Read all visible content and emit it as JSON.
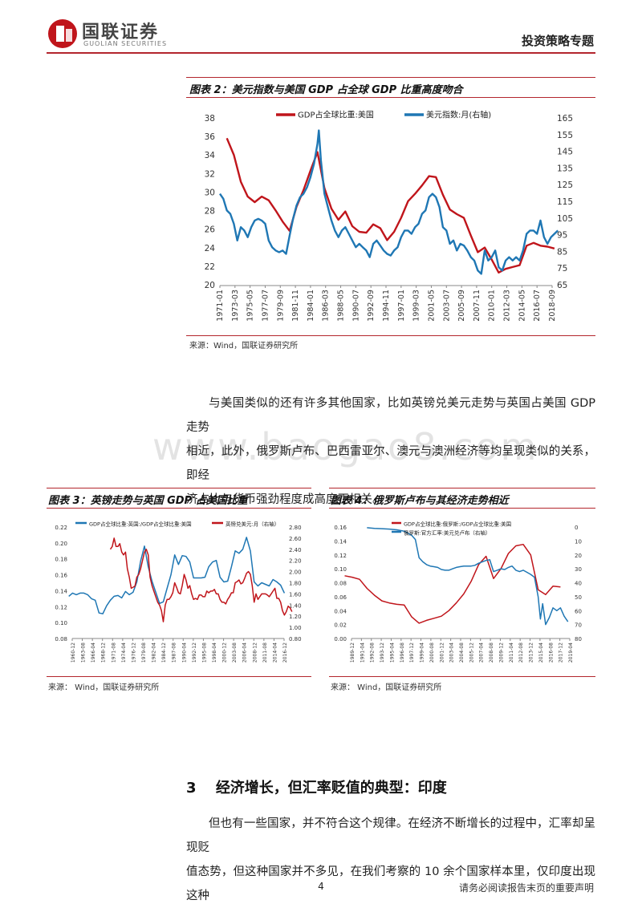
{
  "header": {
    "logo_cn": "国联证券",
    "logo_en": "GUOLIAN SECURITIES",
    "category": "投资策略专题"
  },
  "watermark": "www.baogao8.com",
  "fig2": {
    "title": "图表 2：美元指数与美国 GDP 占全球 GDP 比重高度吻合",
    "source": "来源：Wind，国联证券研究所",
    "chart_data": {
      "type": "line",
      "legend_position": "top",
      "series": [
        {
          "name": "GDP占全球比重:美国",
          "axis": "left",
          "color": "#c0151b",
          "x": [
            1972,
            1973,
            1974,
            1975,
            1976,
            1977,
            1978,
            1979,
            1980,
            1981,
            1982,
            1983,
            1984,
            1985,
            1986,
            1987,
            1988,
            1989,
            1990,
            1991,
            1992,
            1993,
            1994,
            1995,
            1996,
            1997,
            1998,
            1999,
            2000,
            2001,
            2002,
            2003,
            2004,
            2005,
            2006,
            2007,
            2008,
            2009,
            2010,
            2011,
            2012,
            2013,
            2014,
            2015,
            2016,
            2017,
            2018,
            2019
          ],
          "values": [
            35.9,
            34.1,
            31.2,
            29.6,
            29.0,
            29.6,
            29.2,
            28.1,
            26.9,
            25.9,
            28.5,
            30.3,
            32.4,
            34.4,
            30.5,
            28.3,
            27.1,
            28.0,
            26.4,
            25.8,
            25.7,
            26.6,
            26.2,
            24.9,
            25.8,
            27.3,
            29.1,
            29.9,
            30.8,
            31.8,
            31.7,
            29.8,
            28.2,
            27.7,
            27.3,
            25.4,
            23.6,
            24.1,
            22.8,
            21.4,
            21.8,
            22.0,
            22.2,
            24.3,
            24.6,
            24.3,
            24.2,
            24.0
          ]
        },
        {
          "name": "美元指数:月(右轴)",
          "axis": "right",
          "color": "#1f77b4",
          "x": [
            1971.0,
            1971.5,
            1972.0,
            1972.5,
            1973.0,
            1973.5,
            1974.0,
            1974.5,
            1975.0,
            1975.5,
            1976.0,
            1976.5,
            1977.0,
            1977.5,
            1978.0,
            1978.5,
            1979.0,
            1979.5,
            1980.0,
            1980.5,
            1981.0,
            1981.5,
            1982.0,
            1982.5,
            1983.0,
            1983.5,
            1984.0,
            1984.5,
            1985.0,
            1985.2,
            1985.5,
            1986.0,
            1986.5,
            1987.0,
            1987.5,
            1988.0,
            1988.5,
            1989.0,
            1989.5,
            1990.0,
            1990.5,
            1991.0,
            1991.5,
            1992.0,
            1992.5,
            1993.0,
            1993.5,
            1994.0,
            1994.5,
            1995.0,
            1995.5,
            1996.0,
            1996.5,
            1997.0,
            1997.5,
            1998.0,
            1998.5,
            1999.0,
            1999.5,
            2000.0,
            2000.5,
            2001.0,
            2001.5,
            2002.0,
            2002.5,
            2003.0,
            2003.5,
            2004.0,
            2004.5,
            2005.0,
            2005.5,
            2006.0,
            2006.5,
            2007.0,
            2007.5,
            2008.0,
            2008.5,
            2009.0,
            2009.5,
            2010.0,
            2010.5,
            2011.0,
            2011.5,
            2012.0,
            2012.5,
            2013.0,
            2013.5,
            2014.0,
            2014.5,
            2015.0,
            2015.5,
            2016.0,
            2016.5,
            2017.0,
            2017.5,
            2018.0,
            2018.5,
            2019.0,
            2019.5
          ],
          "values": [
            120,
            117,
            110,
            108,
            102,
            92,
            100,
            98,
            94,
            100,
            104,
            105,
            104,
            102,
            92,
            88,
            86,
            85,
            86,
            84,
            95,
            105,
            113,
            118,
            120,
            124,
            130,
            138,
            150,
            158,
            140,
            120,
            112,
            104,
            98,
            94,
            98,
            100,
            96,
            92,
            88,
            90,
            88,
            86,
            82,
            90,
            92,
            89,
            86,
            84,
            83,
            86,
            88,
            94,
            98,
            98,
            96,
            100,
            102,
            108,
            110,
            118,
            120,
            118,
            112,
            100,
            98,
            90,
            92,
            86,
            90,
            89,
            86,
            82,
            80,
            74,
            72,
            86,
            80,
            82,
            86,
            76,
            74,
            80,
            82,
            80,
            82,
            80,
            86,
            96,
            98,
            98,
            96,
            104,
            94,
            90,
            94,
            96,
            98
          ]
        }
      ],
      "x_categories": [
        "1971-01",
        "1973-03",
        "1975-05",
        "1977-07",
        "1979-09",
        "1981-11",
        "1984-01",
        "1986-03",
        "1988-05",
        "1990-07",
        "1992-09",
        "1994-11",
        "1997-01",
        "1999-03",
        "2001-05",
        "2003-07",
        "2005-09",
        "2007-11",
        "2010-01",
        "2012-03",
        "2014-05",
        "2016-07",
        "2018-09"
      ],
      "ylim_left": [
        20,
        38
      ],
      "yticks_left": [
        "20",
        "22",
        "24",
        "26",
        "28",
        "30",
        "32",
        "34",
        "36",
        "38"
      ],
      "ylim_right": [
        65,
        165
      ],
      "yticks_right": [
        "65",
        "75",
        "85",
        "95",
        "105",
        "115",
        "125",
        "135",
        "145",
        "155",
        "165"
      ],
      "grid": false
    }
  },
  "paragraph1": {
    "line1": "与美国类似的还有许多其他国家，比如英镑兑美元走势与英国占美国 GDP 走势",
    "line2": "相近，此外，俄罗斯卢布、巴西雷亚尔、澳元与澳洲经济等均呈现类似的关系，即经",
    "line3": "济占比与货币强劲程度成高度正相关。"
  },
  "fig3": {
    "title": "图表 3：英镑走势与英国 GDP 占美国比重",
    "source": "来源：  Wind，国联证券研究所",
    "chart_data": {
      "type": "line",
      "legend_position": "top",
      "series": [
        {
          "name": "GDP占全球比重:英国:/GDP占全球比重:美国",
          "axis": "left",
          "color": "#1f77b4",
          "x": [
            1960,
            1961,
            1962,
            1963,
            1964,
            1965,
            1966,
            1967,
            1968,
            1969,
            1970,
            1971,
            1972,
            1973,
            1974,
            1975,
            1976,
            1977,
            1978,
            1979,
            1980,
            1981,
            1982,
            1983,
            1984,
            1985,
            1986,
            1987,
            1988,
            1989,
            1990,
            1991,
            1992,
            1993,
            1994,
            1995,
            1996,
            1997,
            1998,
            1999,
            2000,
            2001,
            2002,
            2003,
            2004,
            2005,
            2006,
            2007,
            2008,
            2009,
            2010,
            2011,
            2012,
            2013,
            2014,
            2015,
            2016,
            2017
          ],
          "values": [
            0.133,
            0.137,
            0.135,
            0.137,
            0.137,
            0.135,
            0.13,
            0.128,
            0.112,
            0.111,
            0.121,
            0.128,
            0.133,
            0.134,
            0.131,
            0.139,
            0.135,
            0.138,
            0.151,
            0.177,
            0.196,
            0.17,
            0.152,
            0.138,
            0.124,
            0.126,
            0.143,
            0.16,
            0.185,
            0.173,
            0.184,
            0.183,
            0.176,
            0.156,
            0.156,
            0.156,
            0.157,
            0.17,
            0.176,
            0.178,
            0.157,
            0.151,
            0.152,
            0.17,
            0.19,
            0.187,
            0.192,
            0.207,
            0.19,
            0.151,
            0.146,
            0.15,
            0.148,
            0.146,
            0.154,
            0.151,
            0.147,
            0.137
          ]
        },
        {
          "name": "英镑兑美元:月（右轴）",
          "axis": "right",
          "color": "#c0151b",
          "x": [
            1971.0,
            1971.5,
            1972.0,
            1972.5,
            1973.0,
            1973.5,
            1974.0,
            1974.5,
            1975.0,
            1975.5,
            1976.0,
            1976.5,
            1977.0,
            1977.5,
            1978.0,
            1978.5,
            1979.0,
            1979.5,
            1980.0,
            1980.5,
            1981.0,
            1981.5,
            1982.0,
            1982.5,
            1983.0,
            1983.5,
            1984.0,
            1984.5,
            1985.0,
            1985.5,
            1986.0,
            1986.5,
            1987.0,
            1987.5,
            1988.0,
            1988.5,
            1989.0,
            1989.5,
            1990.0,
            1990.5,
            1991.0,
            1991.5,
            1992.0,
            1992.5,
            1993.0,
            1993.5,
            1994.0,
            1994.5,
            1995.0,
            1995.5,
            1996.0,
            1996.5,
            1997.0,
            1997.5,
            1998.0,
            1998.5,
            1999.0,
            1999.5,
            2000.0,
            2000.5,
            2001.0,
            2001.5,
            2002.0,
            2002.5,
            2003.0,
            2003.5,
            2004.0,
            2004.5,
            2005.0,
            2005.5,
            2006.0,
            2006.5,
            2007.0,
            2007.5,
            2008.0,
            2008.5,
            2009.0,
            2009.5,
            2010.0,
            2010.5,
            2011.0,
            2011.5,
            2012.0,
            2012.5,
            2013.0,
            2013.5,
            2014.0,
            2014.5,
            2015.0,
            2015.5,
            2016.0,
            2016.5,
            2017.0,
            2017.5,
            2018.0,
            2018.5,
            2019.0
          ],
          "values": [
            2.4,
            2.45,
            2.6,
            2.45,
            2.45,
            2.5,
            2.35,
            2.3,
            2.35,
            2.05,
            1.9,
            1.7,
            1.72,
            1.74,
            1.9,
            1.95,
            2.05,
            2.2,
            2.35,
            2.4,
            2.3,
            1.9,
            1.75,
            1.65,
            1.55,
            1.45,
            1.4,
            1.3,
            1.1,
            1.4,
            1.5,
            1.5,
            1.55,
            1.62,
            1.8,
            1.72,
            1.62,
            1.6,
            1.75,
            1.95,
            1.85,
            1.7,
            1.75,
            1.6,
            1.5,
            1.52,
            1.5,
            1.58,
            1.58,
            1.55,
            1.55,
            1.65,
            1.62,
            1.65,
            1.65,
            1.68,
            1.6,
            1.6,
            1.5,
            1.45,
            1.45,
            1.42,
            1.5,
            1.55,
            1.62,
            1.62,
            1.8,
            1.82,
            1.85,
            1.78,
            1.8,
            1.88,
            1.97,
            2.0,
            1.95,
            1.75,
            1.45,
            1.6,
            1.5,
            1.55,
            1.6,
            1.6,
            1.6,
            1.58,
            1.55,
            1.6,
            1.65,
            1.7,
            1.52,
            1.52,
            1.45,
            1.3,
            1.22,
            1.28,
            1.38,
            1.35,
            1.28
          ]
        }
      ],
      "x_categories": [
        "1960-12",
        "1963-08",
        "1966-04",
        "1968-12",
        "1971-08",
        "1974-04",
        "1976-12",
        "1979-08",
        "1982-04",
        "1984-12",
        "1987-08",
        "1990-04",
        "1992-12",
        "1995-08",
        "1998-04",
        "2000-12",
        "2003-08",
        "2006-04",
        "2008-12",
        "2011-08",
        "2014-04",
        "2016-12"
      ],
      "ylim_left": [
        0.08,
        0.22
      ],
      "yticks_left": [
        "0.08",
        "0.10",
        "0.12",
        "0.14",
        "0.16",
        "0.18",
        "0.20",
        "0.22"
      ],
      "ylim_right": [
        0.8,
        2.8
      ],
      "yticks_right": [
        "0.80",
        "1.00",
        "1.20",
        "1.40",
        "1.60",
        "1.80",
        "2.00",
        "2.20",
        "2.40",
        "2.60",
        "2.80"
      ],
      "grid": false
    }
  },
  "fig4": {
    "title": "图表 4：俄罗斯卢布与其经济走势相近",
    "source": "来源：  Wind，国联证券研究所",
    "chart_data": {
      "type": "line",
      "legend_position": "top",
      "series": [
        {
          "name": "GDP占全球比重:俄罗斯:/GDP占全球比重:美国",
          "axis": "left",
          "color": "#c0151b",
          "x": [
            1989,
            1990,
            1991,
            1992,
            1993,
            1994,
            1995,
            1996,
            1997,
            1998,
            1999,
            2000,
            2001,
            2002,
            2003,
            2004,
            2005,
            2006,
            2007,
            2008,
            2009,
            2010,
            2011,
            2012,
            2013,
            2014,
            2015,
            2016,
            2017,
            2018
          ],
          "values": [
            0.09,
            0.088,
            0.085,
            0.072,
            0.062,
            0.054,
            0.051,
            0.049,
            0.048,
            0.031,
            0.022,
            0.026,
            0.029,
            0.032,
            0.04,
            0.051,
            0.064,
            0.082,
            0.106,
            0.118,
            0.086,
            0.1,
            0.122,
            0.133,
            0.135,
            0.12,
            0.07,
            0.063,
            0.075,
            0.074
          ]
        },
        {
          "name": "俄罗斯:官方汇率:美元兑卢布（右轴）",
          "axis": "right",
          "color": "#1f77b4",
          "x": [
            1992.0,
            1993.0,
            1994.0,
            1995.0,
            1996.0,
            1997.0,
            1998.0,
            1998.5,
            1999.0,
            1999.5,
            2000.0,
            2000.5,
            2001.0,
            2001.5,
            2002.0,
            2002.5,
            2003.0,
            2003.5,
            2004.0,
            2004.5,
            2005.0,
            2005.5,
            2006.0,
            2006.5,
            2007.0,
            2007.5,
            2008.0,
            2008.5,
            2009.0,
            2009.5,
            2010.0,
            2010.5,
            2011.0,
            2011.5,
            2012.0,
            2012.5,
            2013.0,
            2013.5,
            2014.0,
            2014.5,
            2015.0,
            2015.3,
            2015.6,
            2016.0,
            2016.5,
            2017.0,
            2017.5,
            2018.0,
            2018.5,
            2019.0
          ],
          "values": [
            0.5,
            1.0,
            1.2,
            1.5,
            2.0,
            3.0,
            6.0,
            9.0,
            22.0,
            25.0,
            27.0,
            28.0,
            28.5,
            29.0,
            30.5,
            31.0,
            31.0,
            30.0,
            29.0,
            28.5,
            28.0,
            28.0,
            28.0,
            27.5,
            26.0,
            25.0,
            24.0,
            23.5,
            32.0,
            31.0,
            30.0,
            30.5,
            29.0,
            28.0,
            31.0,
            32.0,
            31.0,
            32.5,
            34.0,
            36.0,
            50.0,
            66.0,
            55.0,
            70.0,
            65.0,
            58.0,
            60.0,
            58.0,
            64.0,
            68.0
          ]
        }
      ],
      "x_categories": [
        "1989-12",
        "1991-04",
        "1992-08",
        "1993-12",
        "1995-04",
        "1996-08",
        "1997-12",
        "1999-04",
        "2000-08",
        "2001-12",
        "2003-04",
        "2004-08",
        "2005-12",
        "2007-04",
        "2008-08",
        "2009-12",
        "2011-04",
        "2012-08",
        "2013-12",
        "2015-04",
        "2016-08",
        "2017-12",
        "2019-04"
      ],
      "ylim_left": [
        0,
        0.16
      ],
      "yticks_left": [
        "0.00",
        "0.02",
        "0.04",
        "0.06",
        "0.08",
        "0.10",
        "0.12",
        "0.14",
        "0.16"
      ],
      "ylim_right": [
        0,
        80
      ],
      "right_inverted": true,
      "yticks_right": [
        "0",
        "10",
        "20",
        "30",
        "40",
        "50",
        "60",
        "70",
        "80"
      ],
      "grid": false
    }
  },
  "section3": {
    "number": "3",
    "title": "经济增长，但汇率贬值的典型：印度"
  },
  "paragraph2": {
    "line1": "但也有一些国家，并不符合这个规律。在经济不断增长的过程中，汇率却呈现贬",
    "line2": "值态势，但这种国家并不多见，在我们考察的 10 余个国家样本里，仅印度出现这种"
  },
  "footer": {
    "page": "4",
    "note": "请务必阅读报告末页的重要声明"
  }
}
